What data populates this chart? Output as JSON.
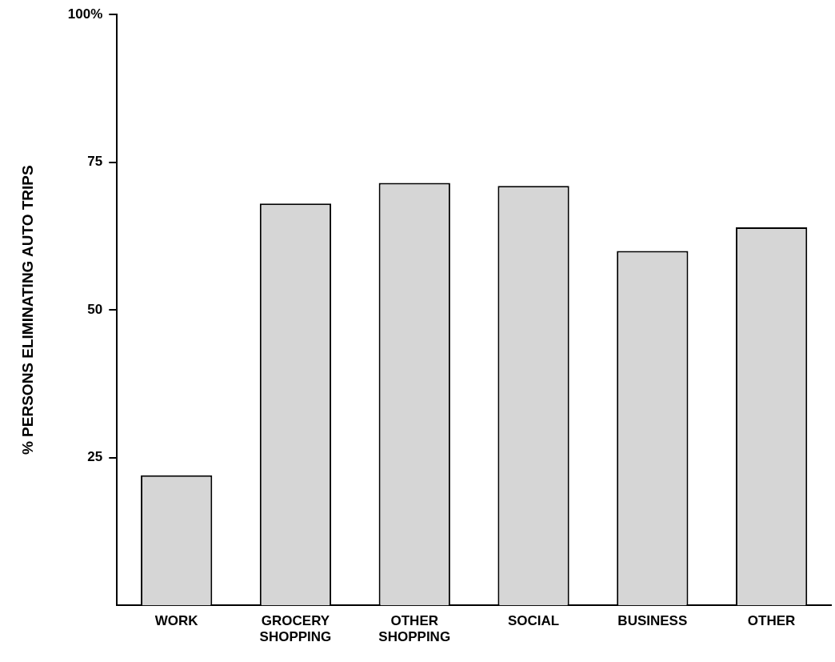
{
  "chart_data": {
    "type": "bar",
    "ylabel": "% PERSONS ELIMINATING AUTO TRIPS",
    "categories": [
      "WORK",
      "GROCERY SHOPPING",
      "OTHER SHOPPING",
      "SOCIAL",
      "BUSINESS",
      "OTHER"
    ],
    "values": [
      22,
      68,
      71.5,
      71,
      60,
      64
    ],
    "color": "#d6d6d6",
    "ylim": [
      0,
      100
    ],
    "yticks": [
      25,
      50,
      75,
      {
        "value": 100,
        "label": "100%"
      }
    ],
    "grid": false,
    "legend": false
  }
}
